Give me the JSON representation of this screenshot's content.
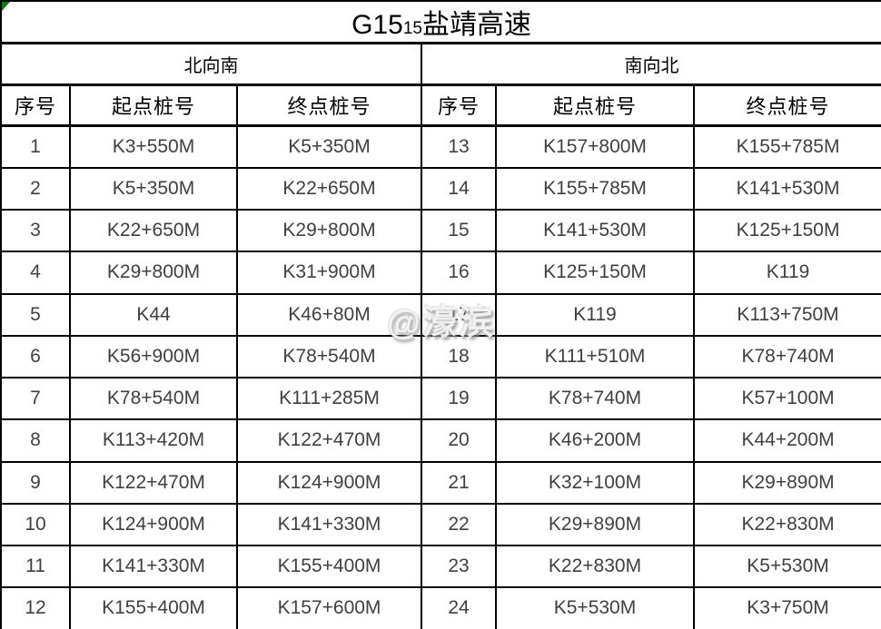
{
  "title": {
    "code": "G15",
    "code_subscript": "15",
    "name": "盐靖高速"
  },
  "table": {
    "direction_headers": [
      "北向南",
      "南向北"
    ],
    "column_headers": [
      "序号",
      "起点桩号",
      "终点桩号",
      "序号",
      "起点桩号",
      "终点桩号"
    ],
    "rows": [
      [
        "1",
        "K3+550M",
        "K5+350M",
        "13",
        "K157+800M",
        "K155+785M"
      ],
      [
        "2",
        "K5+350M",
        "K22+650M",
        "14",
        "K155+785M",
        "K141+530M"
      ],
      [
        "3",
        "K22+650M",
        "K29+800M",
        "15",
        "K141+530M",
        "K125+150M"
      ],
      [
        "4",
        "K29+800M",
        "K31+900M",
        "16",
        "K125+150M",
        "K119"
      ],
      [
        "5",
        "K44",
        "K46+80M",
        "17",
        "K119",
        "K113+750M"
      ],
      [
        "6",
        "K56+900M",
        "K78+540M",
        "18",
        "K111+510M",
        "K78+740M"
      ],
      [
        "7",
        "K78+540M",
        "K111+285M",
        "19",
        "K78+740M",
        "K57+100M"
      ],
      [
        "8",
        "K113+420M",
        "K122+470M",
        "20",
        "K46+200M",
        "K44+200M"
      ],
      [
        "9",
        "K122+470M",
        "K124+900M",
        "21",
        "K32+100M",
        "K29+890M"
      ],
      [
        "10",
        "K124+900M",
        "K141+330M",
        "22",
        "K29+890M",
        "K22+830M"
      ],
      [
        "11",
        "K141+330M",
        "K155+400M",
        "23",
        "K22+830M",
        "K5+530M"
      ],
      [
        "12",
        "K155+400M",
        "K157+600M",
        "24",
        "K5+530M",
        "K3+750M"
      ]
    ]
  },
  "watermark": {
    "text": "@濠滨"
  },
  "colors": {
    "background": "#ffffff",
    "border": "#000000",
    "header_text": "#000000",
    "data_text": "#404040",
    "error_triangle_green": "#0a7c0a",
    "watermark_text": "#f5f5f5"
  }
}
